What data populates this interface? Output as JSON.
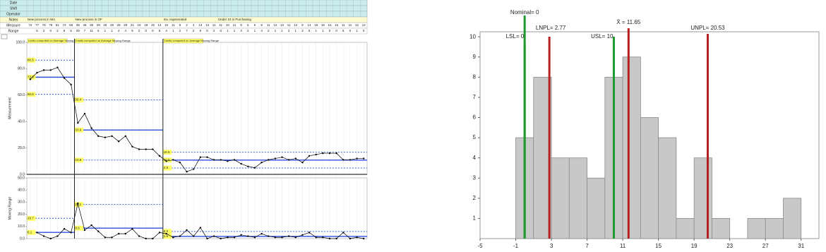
{
  "chart_data": [
    {
      "type": "control",
      "row_labels": [
        "Date",
        "Shift",
        "Operator",
        "Notes",
        "Measure",
        "Range"
      ],
      "notes": [
        "New process in WA",
        "New process in OF",
        "Inv. regenerated",
        "Under 10 in Purchasing"
      ],
      "annotations": [
        "Limits computed on Average Moving Range",
        "Limits computed on Average Moving Range",
        "Limits computed on Average Moving Range"
      ],
      "y_label": "Measurement",
      "y2_label": "Moving Range",
      "ylim": [
        0,
        100
      ],
      "yticks": [
        {
          "value": 0,
          "label": "0.0"
        },
        {
          "value": 20,
          "label": "20.0"
        },
        {
          "value": 40,
          "label": "40.0"
        },
        {
          "value": 60,
          "label": "60.0"
        },
        {
          "value": 80,
          "label": "80.0"
        },
        {
          "value": 100,
          "label": "100.0"
        }
      ],
      "y2lim": [
        0,
        50
      ],
      "y2ticks": [
        {
          "value": 0,
          "label": "0.0"
        },
        {
          "value": 10,
          "label": "10.0"
        },
        {
          "value": 20,
          "label": "20.0"
        },
        {
          "value": 30,
          "label": "30.0"
        },
        {
          "value": 40,
          "label": "40.0"
        },
        {
          "value": 50,
          "label": "50.0"
        }
      ],
      "series": [
        {
          "color": "#000000",
          "values": [
            72,
            77,
            79,
            79,
            81,
            73,
            68,
            39,
            46,
            35,
            29,
            28,
            29,
            25,
            29,
            21,
            19,
            19,
            19,
            14,
            10,
            11,
            9,
            2,
            4,
            13,
            13,
            11,
            11,
            10,
            11,
            8,
            6,
            5,
            9,
            11,
            12,
            13,
            11,
            12,
            9,
            14,
            15,
            16,
            16,
            16,
            11,
            11,
            12,
            12
          ]
        },
        {
          "color": "#000000",
          "axis": "y2",
          "values": [
            null,
            5,
            2,
            0,
            2,
            8,
            5,
            29,
            7,
            11,
            6,
            1,
            1,
            4,
            4,
            8,
            2,
            0,
            0,
            5,
            4,
            1,
            2,
            7,
            2,
            9,
            0,
            2,
            0,
            1,
            1,
            3,
            2,
            1,
            4,
            2,
            1,
            1,
            2,
            1,
            3,
            5,
            1,
            1,
            0,
            0,
            5,
            0,
            1,
            0
          ]
        },
        {
          "color": "#3a5bd9",
          "dash": true,
          "values": [
            86.5,
            86.5,
            86.5,
            86.5,
            86.5,
            86.5,
            86.5,
            56.4,
            56.4,
            56.4,
            56.4,
            56.4,
            56.4,
            56.4,
            56.4,
            56.4,
            56.4,
            56.4,
            56.4,
            56.4,
            16.8,
            16.8,
            16.8,
            16.8,
            16.8,
            16.8,
            16.8,
            16.8,
            16.8,
            16.8,
            16.8,
            16.8,
            16.8,
            16.8,
            16.8,
            16.8,
            16.8,
            16.8,
            16.8,
            16.8,
            16.8,
            16.8,
            16.8,
            16.8,
            16.8,
            16.8,
            16.8,
            16.8,
            16.8,
            16.8
          ]
        },
        {
          "color": "#2f4fe0",
          "values": [
            73.6,
            73.6,
            73.6,
            73.6,
            73.6,
            73.6,
            73.6,
            33.6,
            33.6,
            33.6,
            33.6,
            33.6,
            33.6,
            33.6,
            33.6,
            33.6,
            33.6,
            33.6,
            33.6,
            33.6,
            10.8,
            10.8,
            10.8,
            10.8,
            10.8,
            10.8,
            10.8,
            10.8,
            10.8,
            10.8,
            10.8,
            10.8,
            10.8,
            10.8,
            10.8,
            10.8,
            10.8,
            10.8,
            10.8,
            10.8,
            10.8,
            10.8,
            10.8,
            10.8,
            10.8,
            10.8,
            10.8,
            10.8,
            10.8,
            10.8
          ]
        },
        {
          "color": "#3a5bd9",
          "dash": true,
          "values": [
            60.6,
            60.6,
            60.6,
            60.6,
            60.6,
            60.6,
            60.6,
            10.8,
            10.8,
            10.8,
            10.8,
            10.8,
            10.8,
            10.8,
            10.8,
            10.8,
            10.8,
            10.8,
            10.8,
            10.8,
            4.8,
            4.8,
            4.8,
            4.8,
            4.8,
            4.8,
            4.8,
            4.8,
            4.8,
            4.8,
            4.8,
            4.8,
            4.8,
            4.8,
            4.8,
            4.8,
            4.8,
            4.8,
            4.8,
            4.8,
            4.8,
            4.8,
            4.8,
            4.8,
            4.8,
            4.8,
            4.8,
            4.8,
            4.8,
            4.8
          ]
        },
        {
          "color": "#3a5bd9",
          "dash": true,
          "axis": "y2",
          "values": [
            16.7,
            16.7,
            16.7,
            16.7,
            16.7,
            16.7,
            16.7,
            28.1,
            28.1,
            28.1,
            28.1,
            28.1,
            28.1,
            28.1,
            28.1,
            28.1,
            28.1,
            28.1,
            28.1,
            28.1,
            5.9,
            5.9,
            5.9,
            5.9,
            5.9,
            5.9,
            5.9,
            5.9,
            5.9,
            5.9,
            5.9,
            5.9,
            5.9,
            5.9,
            5.9,
            5.9,
            5.9,
            5.9,
            5.9,
            5.9,
            5.9,
            5.9,
            5.9,
            5.9,
            5.9,
            5.9,
            5.9,
            5.9,
            5.9,
            5.9
          ]
        },
        {
          "color": "#2f4fe0",
          "axis": "y2",
          "values": [
            5.1,
            5.1,
            5.1,
            5.1,
            5.1,
            5.1,
            5.1,
            8.6,
            8.6,
            8.6,
            8.6,
            8.6,
            8.6,
            8.6,
            8.6,
            8.6,
            8.6,
            8.6,
            8.6,
            8.6,
            1.8,
            1.8,
            1.8,
            1.8,
            1.8,
            1.8,
            1.8,
            1.8,
            1.8,
            1.8,
            1.8,
            1.8,
            1.8,
            1.8,
            1.8,
            1.8,
            1.8,
            1.8,
            1.8,
            1.8,
            1.8,
            1.8,
            1.8,
            1.8,
            1.8,
            1.8,
            1.8,
            1.8,
            1.8,
            1.8
          ]
        }
      ]
    },
    {
      "type": "histogram",
      "bins": [
        -1,
        1,
        3,
        5,
        7,
        9,
        11,
        13,
        15,
        17,
        19,
        21,
        23,
        25,
        27,
        29,
        31
      ],
      "values": [
        5,
        8,
        4,
        4,
        3,
        8,
        9,
        6,
        5,
        1,
        4,
        1,
        0,
        1,
        1,
        2
      ],
      "color": "#c8c8c8",
      "xlim": [
        -5,
        33
      ],
      "xticks": [
        -5,
        -1,
        3,
        7,
        11,
        15,
        19,
        23,
        27,
        31
      ],
      "ylim": [
        0,
        10.25
      ],
      "yticks": [
        1,
        2,
        3,
        4,
        5,
        6,
        7,
        8,
        9,
        10
      ],
      "reference_lines": [
        {
          "label": "Nominal= 0",
          "value": 0,
          "color": "#1e9a2e"
        },
        {
          "label": "LSL= 0",
          "value": 0,
          "color": "#1e9a2e"
        },
        {
          "label": "LNPL= 2.77",
          "value": 2.77,
          "color": "#b42020"
        },
        {
          "label": "USL= 10",
          "value": 10,
          "color": "#1e9a2e"
        },
        {
          "label": "X̄ = 11.65",
          "value": 11.65,
          "color": "#b42020"
        },
        {
          "label": "UNPL= 20.53",
          "value": 20.53,
          "color": "#b42020"
        }
      ]
    }
  ]
}
